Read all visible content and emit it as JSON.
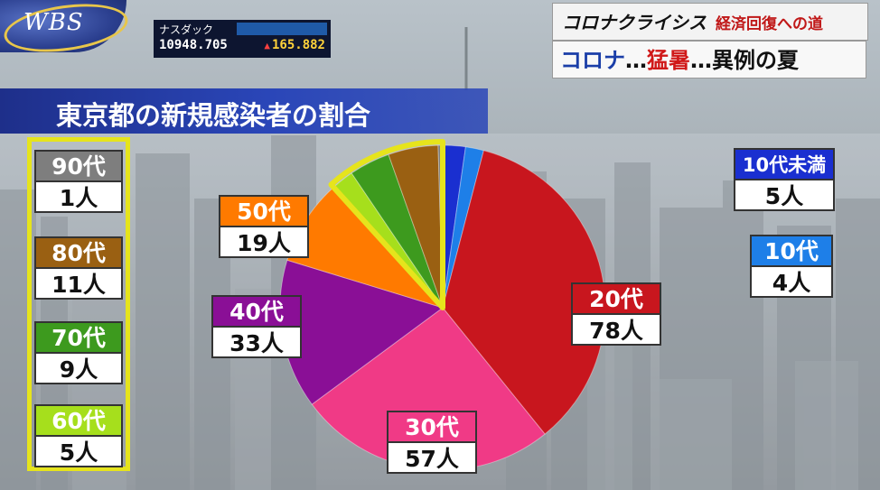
{
  "logo": {
    "text": "WBS"
  },
  "ticker": {
    "name": "ナスダック",
    "value": "10948.705",
    "arrow": "▲",
    "change": "165.882"
  },
  "banner": {
    "corona_crisis": "コロナクライシス",
    "recovery": "経済回復への道",
    "bottom": [
      {
        "text": "コロナ",
        "color": "#1a3ea8"
      },
      {
        "text": "…",
        "color": "#111111"
      },
      {
        "text": "猛暑",
        "color": "#d01818"
      },
      {
        "text": "…",
        "color": "#111111"
      },
      {
        "text": "異例の夏",
        "color": "#111111"
      }
    ]
  },
  "chart_data": {
    "type": "pie",
    "title": "東京都の新規感染者の割合",
    "unit": "人",
    "slices": [
      {
        "label": "10代未満",
        "value": 5,
        "value_label": "5人",
        "color": "#1a2fd0"
      },
      {
        "label": "10代",
        "value": 4,
        "value_label": "4人",
        "color": "#1e7fe8"
      },
      {
        "label": "20代",
        "value": 78,
        "value_label": "78人",
        "color": "#c8161e"
      },
      {
        "label": "30代",
        "value": 57,
        "value_label": "57人",
        "color": "#f03a86"
      },
      {
        "label": "40代",
        "value": 33,
        "value_label": "33人",
        "color": "#8a0f96"
      },
      {
        "label": "50代",
        "value": 19,
        "value_label": "19人",
        "color": "#ff7a00"
      },
      {
        "label": "60代",
        "value": 5,
        "value_label": "5人",
        "color": "#a6df1c"
      },
      {
        "label": "70代",
        "value": 9,
        "value_label": "9人",
        "color": "#3d9a1e"
      },
      {
        "label": "80代",
        "value": 11,
        "value_label": "11人",
        "color": "#9a6012"
      },
      {
        "label": "90代",
        "value": 1,
        "value_label": "1人",
        "color": "#7e7e7e"
      }
    ],
    "highlighted_group": [
      "60代",
      "70代",
      "80代",
      "90代"
    ],
    "highlight_color": "#e6e41c"
  }
}
